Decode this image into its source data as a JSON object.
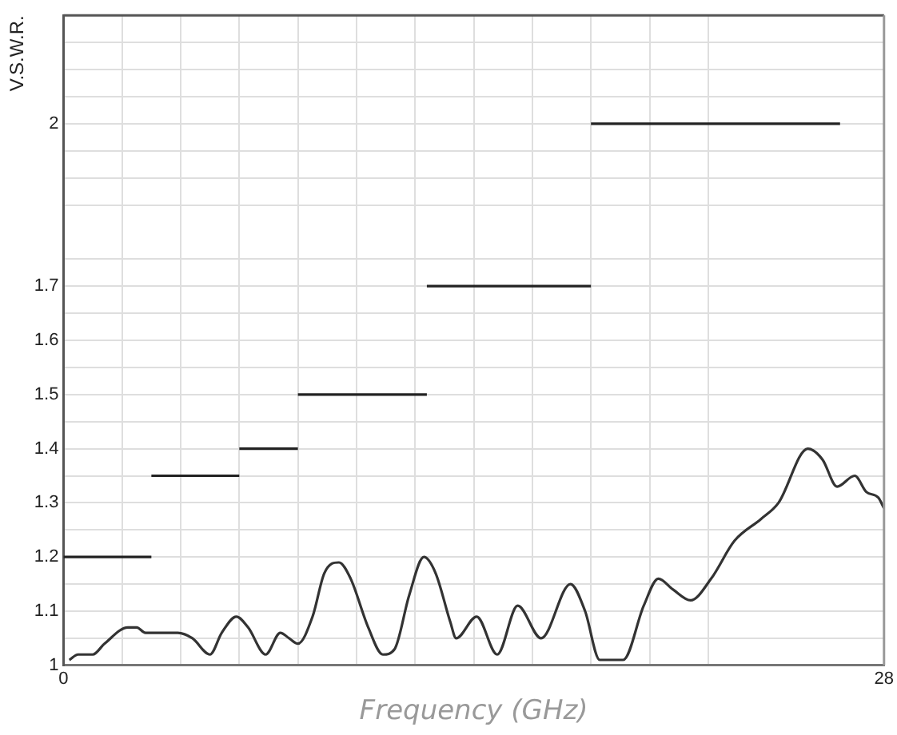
{
  "chart_data": {
    "type": "line",
    "xlabel": "Frequency (GHz)",
    "ylabel": "V.S.W.R.",
    "xlim": [
      0,
      28
    ],
    "ylim": [
      1,
      2.2
    ],
    "xticks": [
      0,
      {
        "value": 2,
        "label": null
      },
      {
        "value": 4,
        "label": null
      },
      {
        "value": 6,
        "label": null
      },
      {
        "value": 8,
        "label": null
      },
      {
        "value": 10,
        "label": null
      },
      {
        "value": 12,
        "label": null
      },
      {
        "value": 14,
        "label": null
      },
      {
        "value": 16,
        "label": null
      },
      {
        "value": 18,
        "label": null
      },
      {
        "value": 20,
        "label": null
      },
      {
        "value": 22,
        "label": null
      },
      28
    ],
    "yticks": [
      1,
      {
        "value": 1.05,
        "label": null
      },
      1.1,
      {
        "value": 1.15,
        "label": null
      },
      1.2,
      {
        "value": 1.25,
        "label": null
      },
      1.3,
      {
        "value": 1.35,
        "label": null
      },
      1.4,
      {
        "value": 1.45,
        "label": null
      },
      1.5,
      {
        "value": 1.55,
        "label": null
      },
      1.6,
      {
        "value": 1.65,
        "label": null
      },
      1.7,
      {
        "value": 1.75,
        "label": null
      },
      {
        "value": 1.85,
        "label": null
      },
      {
        "value": 1.9,
        "label": null
      },
      {
        "value": 1.95,
        "label": null
      },
      2,
      {
        "value": 2.05,
        "label": null
      },
      {
        "value": 2.1,
        "label": null
      },
      {
        "value": 2.15,
        "label": null
      },
      {
        "value": 2.2,
        "label": null
      }
    ],
    "grid": true,
    "series": [
      {
        "color": "#333333",
        "x": [
          0.2,
          0.5,
          1.0,
          1.4,
          2.2,
          2.5,
          2.8,
          3.6,
          3.9,
          4.4,
          5.0,
          5.4,
          5.9,
          6.3,
          6.9,
          7.4,
          7.7,
          8.0,
          8.5,
          8.9,
          9.4,
          9.8,
          10.4,
          10.9,
          11.3,
          11.8,
          12.3,
          12.7,
          13.2,
          13.4,
          14.1,
          14.8,
          15.5,
          16.3,
          17.3,
          17.8,
          18.3,
          18.8,
          19.1,
          19.8,
          20.3,
          20.8,
          21.4,
          22.1,
          22.9,
          23.8,
          24.4,
          25.4,
          25.9,
          26.4,
          27.0,
          27.4,
          27.8,
          28.0
        ],
        "values": [
          1.01,
          1.02,
          1.02,
          1.04,
          1.07,
          1.07,
          1.06,
          1.06,
          1.06,
          1.05,
          1.02,
          1.06,
          1.09,
          1.07,
          1.02,
          1.06,
          1.05,
          1.04,
          1.09,
          1.17,
          1.19,
          1.16,
          1.07,
          1.02,
          1.03,
          1.13,
          1.2,
          1.17,
          1.08,
          1.05,
          1.09,
          1.02,
          1.11,
          1.05,
          1.15,
          1.1,
          1.01,
          1.01,
          1.01,
          1.11,
          1.16,
          1.14,
          1.12,
          1.16,
          1.23,
          1.27,
          1.3,
          1.4,
          1.38,
          1.33,
          1.35,
          1.32,
          1.31,
          1.29
        ]
      },
      {
        "color": "#222222",
        "x": [
          0,
          3
        ],
        "values": [
          1.2,
          1.2
        ]
      },
      {
        "color": "#222222",
        "x": [
          3,
          6
        ],
        "values": [
          1.35,
          1.35
        ]
      },
      {
        "color": "#222222",
        "x": [
          6,
          8
        ],
        "values": [
          1.4,
          1.4
        ]
      },
      {
        "color": "#222222",
        "x": [
          8,
          12.4
        ],
        "values": [
          1.5,
          1.5
        ]
      },
      {
        "color": "#222222",
        "x": [
          12.4,
          18
        ],
        "values": [
          1.7,
          1.7
        ]
      },
      {
        "color": "#222222",
        "x": [
          18,
          26.5
        ],
        "values": [
          2,
          2
        ]
      }
    ]
  }
}
